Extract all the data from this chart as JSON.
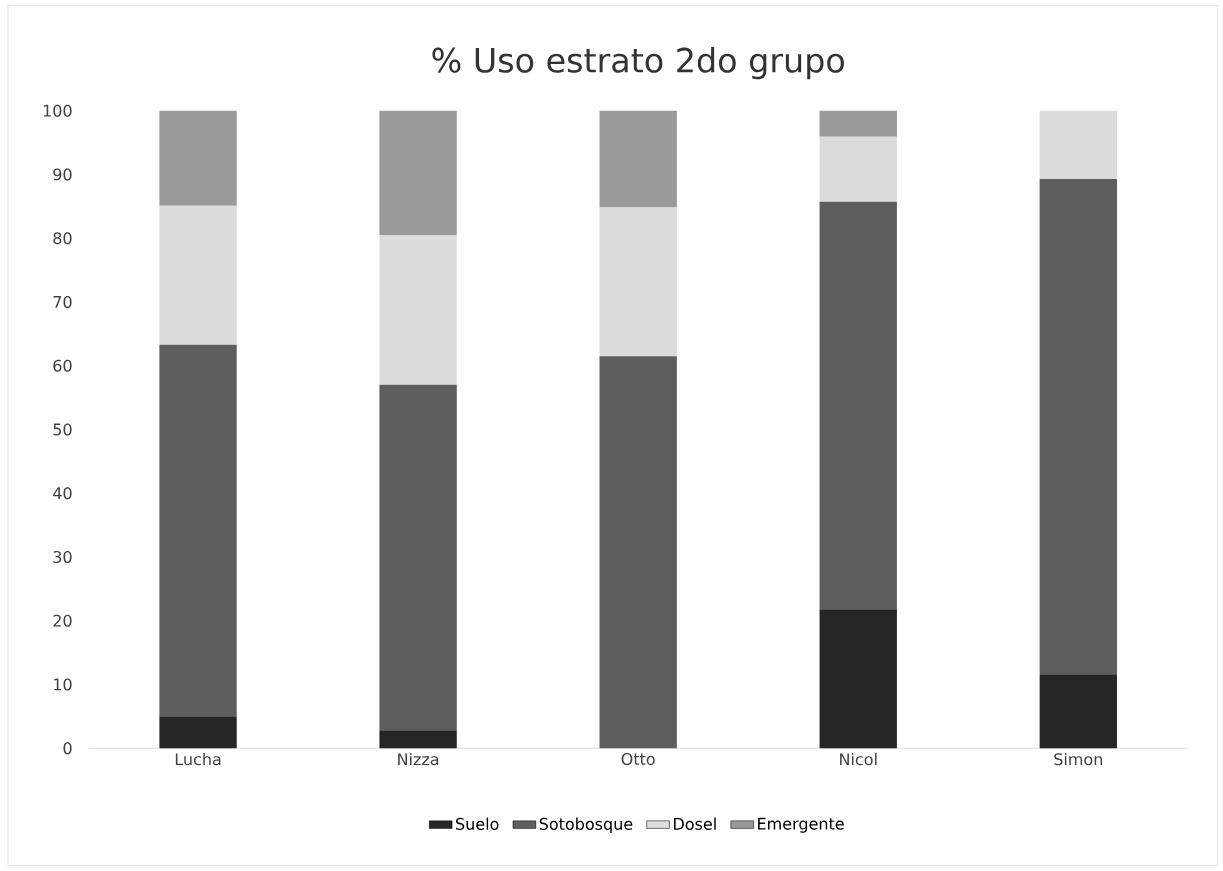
{
  "chart_data": {
    "type": "bar",
    "stacked": true,
    "title": "% Uso estrato 2do grupo",
    "categories": [
      "Lucha",
      "Nizza",
      "Otto",
      "Nicol",
      "Simon"
    ],
    "series": [
      {
        "name": "Suelo",
        "color": "#262626",
        "values": [
          5.0,
          2.8,
          0,
          21.8,
          11.6
        ]
      },
      {
        "name": "Sotobosque",
        "color": "#5e5e5e",
        "values": [
          58.3,
          54.2,
          61.5,
          63.9,
          77.7
        ]
      },
      {
        "name": "Dosel",
        "color": "#dcdcdc",
        "values": [
          21.8,
          23.5,
          23.3,
          10.2,
          10.7
        ]
      },
      {
        "name": "Emergente",
        "color": "#9a9a9a",
        "values": [
          14.9,
          19.5,
          15.2,
          4.1,
          0
        ]
      }
    ],
    "ylim": [
      0,
      100
    ],
    "yticks": [
      0,
      10,
      20,
      30,
      40,
      50,
      60,
      70,
      80,
      90,
      100
    ],
    "grid": false,
    "legend": "bottom"
  }
}
